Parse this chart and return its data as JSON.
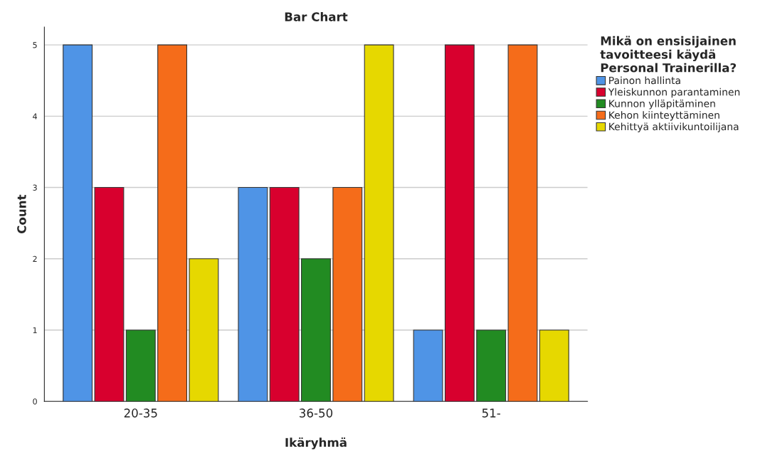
{
  "chart_data": {
    "type": "bar",
    "title": "Bar Chart",
    "xlabel": "Ikäryhmä",
    "ylabel": "Count",
    "legend_title": "Mikä on ensisijainen\ntavoitteesi käydä\nPersonal Trainerilla?",
    "categories": [
      "20-35",
      "36-50",
      "51-"
    ],
    "series": [
      {
        "name": "Painon hallinta",
        "color": "#4f94e6",
        "values": [
          5,
          3,
          1
        ]
      },
      {
        "name": "Yleiskunnon parantaminen",
        "color": "#d8002e",
        "values": [
          3,
          3,
          5
        ]
      },
      {
        "name": "Kunnon ylläpitäminen",
        "color": "#228b22",
        "values": [
          1,
          2,
          1
        ]
      },
      {
        "name": "Kehon kiinteyttäminen",
        "color": "#f56c1a",
        "values": [
          5,
          3,
          5
        ]
      },
      {
        "name": "Kehittyä aktiivikuntoilijana",
        "color": "#e6d800",
        "values": [
          2,
          5,
          1
        ]
      }
    ],
    "ylim": [
      0,
      5.25
    ],
    "yticks": [
      0,
      1,
      2,
      3,
      4,
      5
    ],
    "grid": "y",
    "legend": "top right"
  }
}
